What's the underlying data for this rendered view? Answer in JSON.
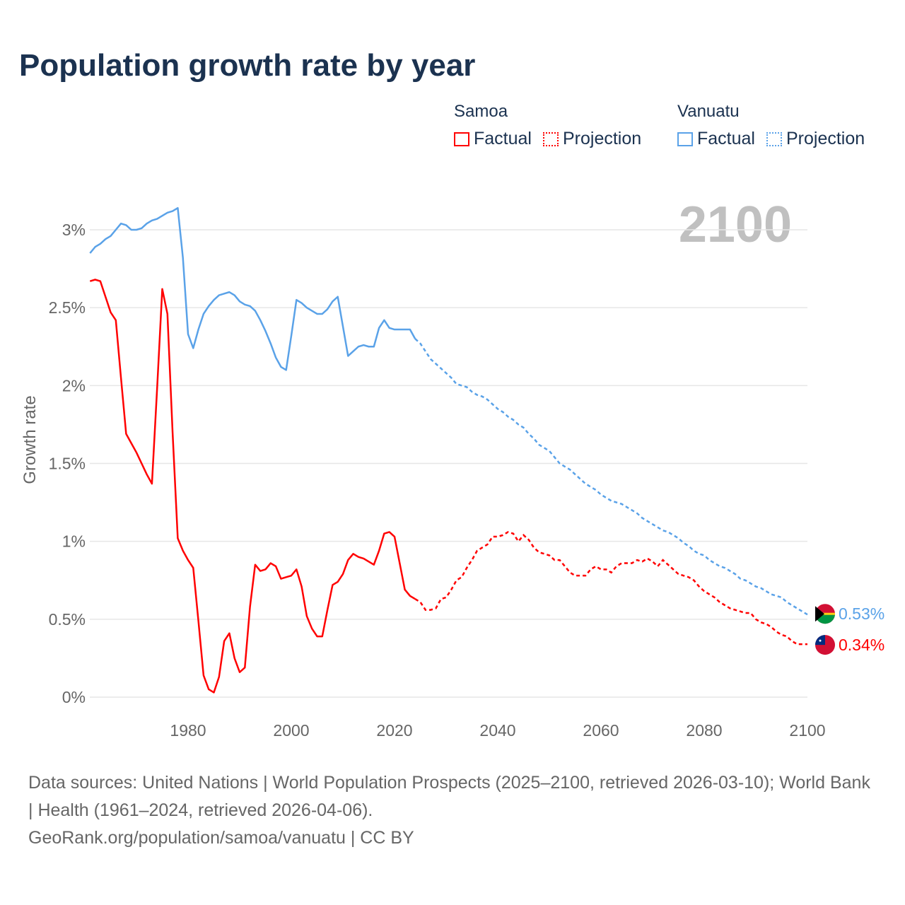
{
  "title": "Population growth rate by year",
  "legend": {
    "groups": [
      {
        "name": "Samoa",
        "factual": "Factual",
        "projection": "Projection",
        "color": "#ff0000"
      },
      {
        "name": "Vanuatu",
        "factual": "Factual",
        "projection": "Projection",
        "color": "#5aa2e8"
      }
    ]
  },
  "year_watermark": "2100",
  "footer": {
    "sources": "Data sources: United Nations | World Population Prospects (2025–2100, retrieved 2026-03-10); World Bank | Health (1961–2024, retrieved 2026-04-06).",
    "credit": "GeoRank.org/population/samoa/vanuatu | CC BY"
  },
  "chart_data": {
    "type": "line",
    "title": "Population growth rate by year",
    "xlabel": "",
    "ylabel": "Growth rate",
    "xlim": [
      1961,
      2100
    ],
    "ylim": [
      0,
      3.2
    ],
    "x_ticks": [
      1980,
      2000,
      2020,
      2040,
      2060,
      2080,
      2100
    ],
    "x_tick_labels": [
      "1980",
      "2000",
      "2020",
      "2040",
      "2060",
      "2080",
      "2100"
    ],
    "y_ticks": [
      0,
      0.5,
      1,
      1.5,
      2,
      2.5,
      3
    ],
    "y_tick_labels": [
      "0%",
      "0.5%",
      "1%",
      "1.5%",
      "2%",
      "2.5%",
      "3%"
    ],
    "grid": true,
    "series": [
      {
        "name": "Samoa",
        "color": "#ff0000",
        "end_label": "0.34%",
        "flag": "samoa-flag",
        "factual_start": 1961,
        "factual": [
          2.67,
          2.68,
          2.67,
          2.57,
          2.47,
          2.42,
          2.05,
          1.69,
          1.63,
          1.57,
          1.5,
          1.43,
          1.37,
          1.98,
          2.62,
          2.46,
          1.7,
          1.02,
          0.94,
          0.88,
          0.83,
          0.49,
          0.14,
          0.05,
          0.03,
          0.13,
          0.36,
          0.41,
          0.25,
          0.16,
          0.19,
          0.58,
          0.85,
          0.81,
          0.82,
          0.86,
          0.84,
          0.76,
          0.77,
          0.78,
          0.82,
          0.71,
          0.52,
          0.44,
          0.39,
          0.39,
          0.56,
          0.72,
          0.74,
          0.79,
          0.88,
          0.92,
          0.9,
          0.89,
          0.87,
          0.85,
          0.94,
          1.05,
          1.06,
          1.03,
          0.86,
          0.69,
          0.65,
          0.63
        ],
        "projection_start": 2024,
        "projection": [
          0.63,
          0.61,
          0.56,
          0.56,
          0.57,
          0.63,
          0.64,
          0.69,
          0.75,
          0.77,
          0.83,
          0.88,
          0.94,
          0.96,
          0.98,
          1.03,
          1.03,
          1.04,
          1.06,
          1.05,
          1.0,
          1.04,
          1.01,
          0.96,
          0.93,
          0.92,
          0.91,
          0.88,
          0.88,
          0.84,
          0.8,
          0.78,
          0.78,
          0.78,
          0.82,
          0.84,
          0.82,
          0.82,
          0.8,
          0.84,
          0.86,
          0.86,
          0.86,
          0.88,
          0.87,
          0.89,
          0.87,
          0.84,
          0.88,
          0.85,
          0.82,
          0.79,
          0.78,
          0.77,
          0.75,
          0.71,
          0.68,
          0.66,
          0.64,
          0.61,
          0.59,
          0.57,
          0.56,
          0.55,
          0.54,
          0.54,
          0.5,
          0.48,
          0.47,
          0.45,
          0.42,
          0.4,
          0.39,
          0.36,
          0.34,
          0.34,
          0.34
        ]
      },
      {
        "name": "Vanuatu",
        "color": "#5aa2e8",
        "end_label": "0.53%",
        "flag": "vanuatu-flag",
        "factual_start": 1961,
        "factual": [
          2.85,
          2.89,
          2.91,
          2.94,
          2.96,
          3.0,
          3.04,
          3.03,
          3.0,
          3.0,
          3.01,
          3.04,
          3.06,
          3.07,
          3.09,
          3.11,
          3.12,
          3.14,
          2.82,
          2.33,
          2.24,
          2.36,
          2.46,
          2.51,
          2.55,
          2.58,
          2.59,
          2.6,
          2.58,
          2.54,
          2.52,
          2.51,
          2.48,
          2.42,
          2.35,
          2.27,
          2.18,
          2.12,
          2.1,
          2.32,
          2.55,
          2.53,
          2.5,
          2.48,
          2.46,
          2.46,
          2.49,
          2.54,
          2.57,
          2.38,
          2.19,
          2.22,
          2.25,
          2.26,
          2.25,
          2.25,
          2.37,
          2.42,
          2.37,
          2.36,
          2.36,
          2.36,
          2.36,
          2.3
        ],
        "projection_start": 2024,
        "projection": [
          2.3,
          2.27,
          2.22,
          2.17,
          2.14,
          2.11,
          2.08,
          2.05,
          2.01,
          2.0,
          1.99,
          1.96,
          1.94,
          1.93,
          1.91,
          1.88,
          1.85,
          1.83,
          1.8,
          1.78,
          1.75,
          1.73,
          1.69,
          1.66,
          1.62,
          1.6,
          1.58,
          1.54,
          1.5,
          1.48,
          1.46,
          1.43,
          1.4,
          1.37,
          1.35,
          1.33,
          1.3,
          1.28,
          1.26,
          1.25,
          1.24,
          1.22,
          1.2,
          1.18,
          1.15,
          1.13,
          1.11,
          1.09,
          1.07,
          1.06,
          1.04,
          1.02,
          0.99,
          0.97,
          0.94,
          0.92,
          0.91,
          0.88,
          0.86,
          0.84,
          0.83,
          0.81,
          0.79,
          0.76,
          0.75,
          0.73,
          0.71,
          0.7,
          0.68,
          0.66,
          0.65,
          0.64,
          0.61,
          0.59,
          0.57,
          0.55,
          0.53
        ]
      }
    ]
  }
}
